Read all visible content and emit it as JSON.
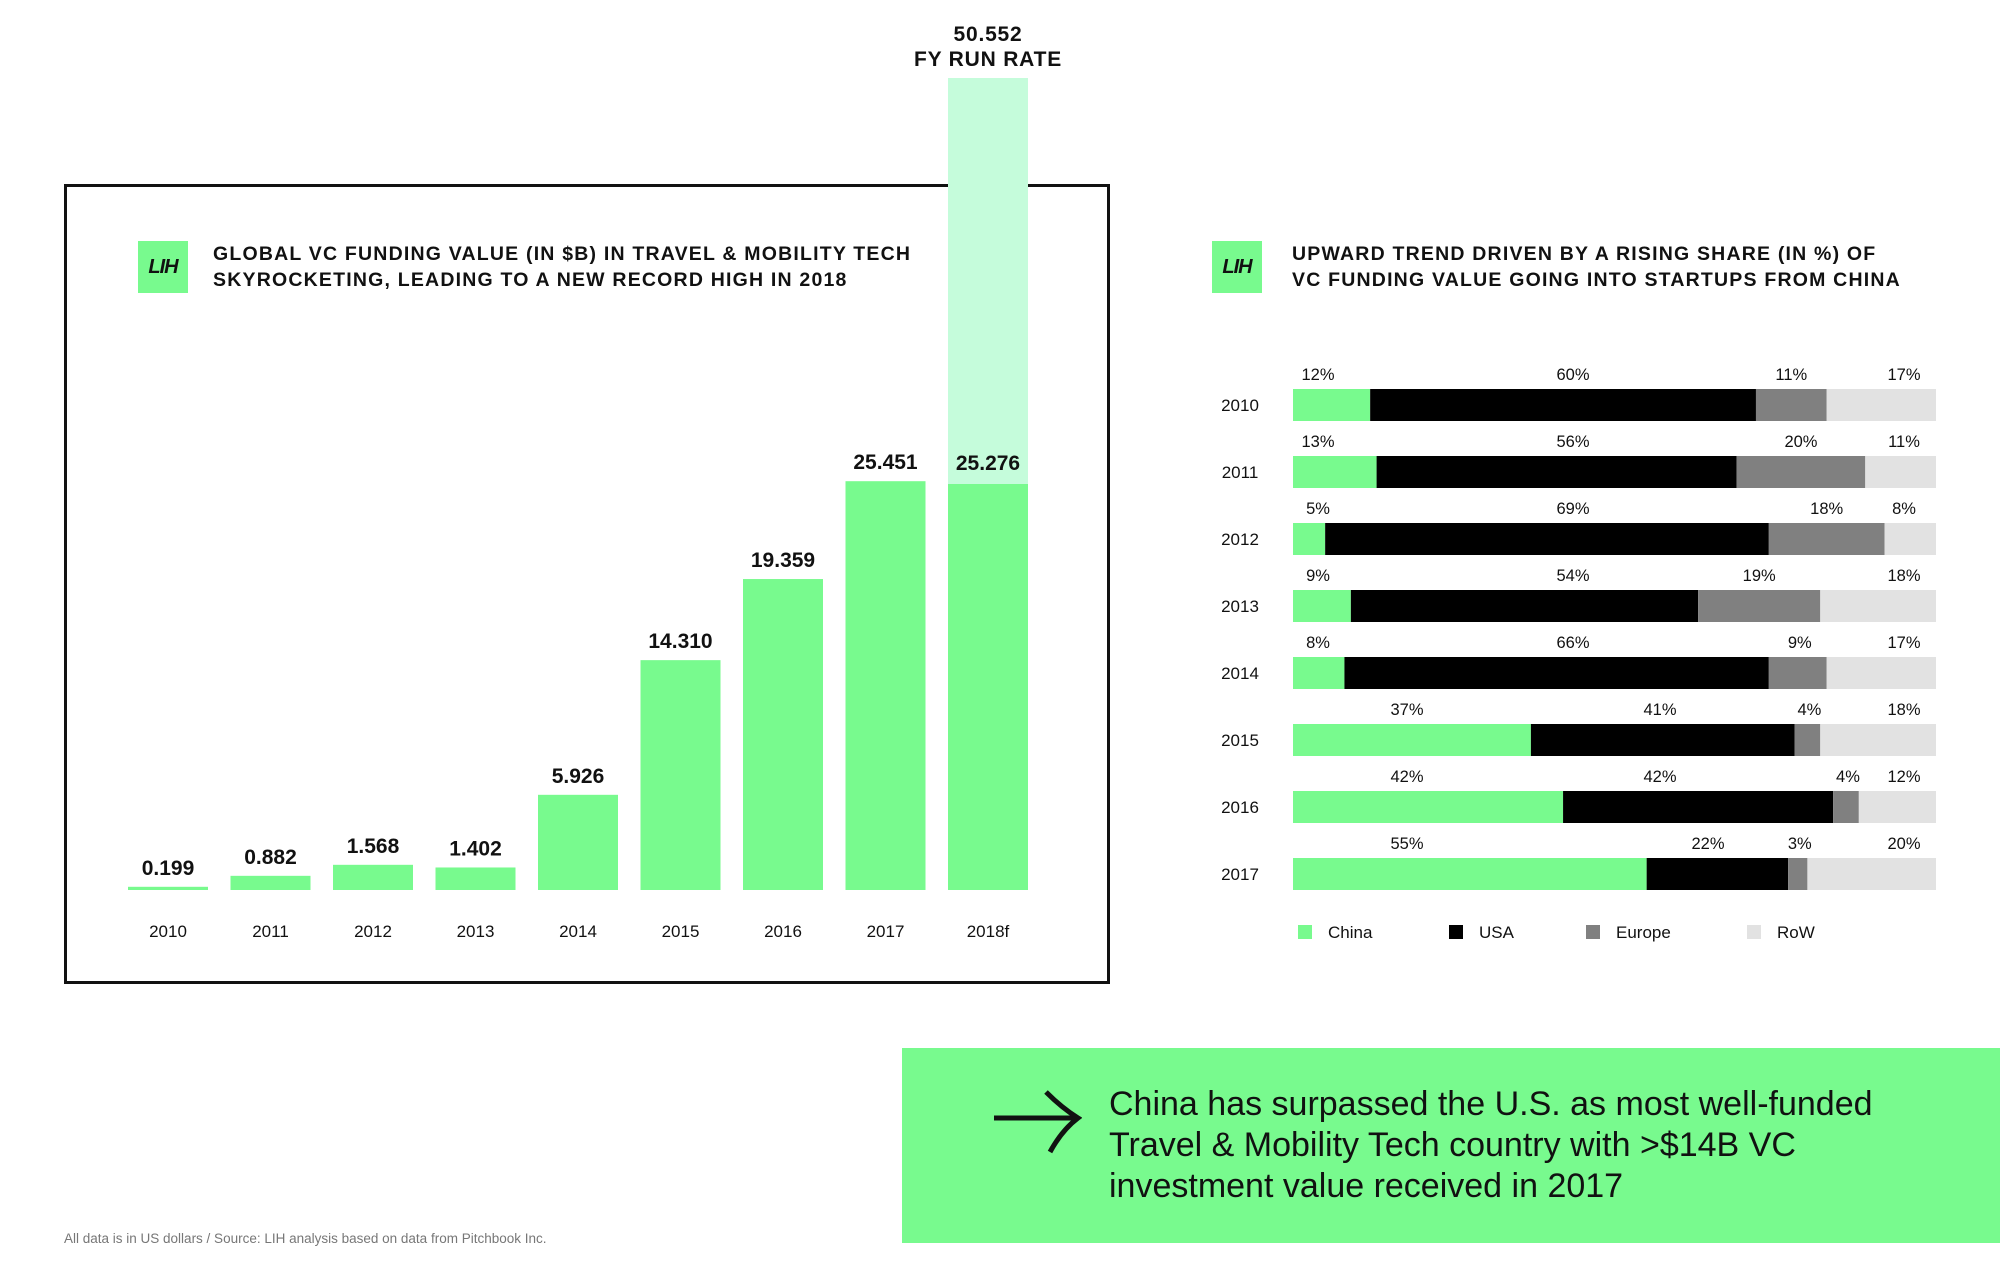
{
  "left_chart": {
    "title_lines": [
      "GLOBAL VC FUNDING VALUE (IN $B) IN TRAVEL & MOBILITY TECH",
      "SKYROCKETING, LEADING TO A NEW RECORD HIGH IN 2018"
    ],
    "logo_text": "LIH",
    "run_rate_label_lines": [
      "50.552",
      "FY RUN RATE"
    ]
  },
  "right_chart": {
    "title_lines": [
      "UPWARD TREND DRIVEN BY A RISING SHARE (IN %) OF",
      "VC FUNDING VALUE GOING INTO STARTUPS FROM CHINA"
    ],
    "logo_text": "LIH"
  },
  "callout": {
    "lines": [
      "China has surpassed the U.S. as most well-funded",
      "Travel & Mobility Tech country with >$14B VC",
      "investment value received in 2017"
    ]
  },
  "footnote": "All data is in US dollars / Source: LIH analysis based on data from Pitchbook Inc.",
  "colors": {
    "china": "#78fa8e",
    "usa": "#000000",
    "europe": "#808080",
    "row": "#e2e2e2",
    "run_rate": "#c5fcdb",
    "frame": "#111111"
  },
  "chart_data": [
    {
      "type": "bar",
      "categories": [
        "2010",
        "2011",
        "2012",
        "2013",
        "2014",
        "2015",
        "2016",
        "2017",
        "2018f"
      ],
      "values": [
        0.199,
        0.882,
        1.568,
        1.402,
        5.926,
        14.31,
        19.359,
        25.451,
        25.276
      ],
      "value_labels": [
        "0.199",
        "0.882",
        "1.568",
        "1.402",
        "5.926",
        "14.310",
        "19.359",
        "25.451",
        "25.276"
      ],
      "stacked_extension": {
        "category": "2018f",
        "total": 50.552
      },
      "ylim": [
        0,
        50.552
      ],
      "grid": false
    },
    {
      "type": "bar",
      "orientation": "horizontal",
      "stacked": true,
      "percent": true,
      "categories": [
        "2010",
        "2011",
        "2012",
        "2013",
        "2014",
        "2015",
        "2016",
        "2017"
      ],
      "series": [
        {
          "name": "China",
          "values": [
            12,
            13,
            5,
            9,
            8,
            37,
            42,
            55
          ]
        },
        {
          "name": "USA",
          "values": [
            60,
            56,
            69,
            54,
            66,
            41,
            42,
            22
          ]
        },
        {
          "name": "Europe",
          "values": [
            11,
            20,
            18,
            19,
            9,
            4,
            4,
            3
          ]
        },
        {
          "name": "RoW",
          "values": [
            17,
            11,
            8,
            18,
            17,
            18,
            12,
            20
          ]
        }
      ],
      "legend_position": "bottom",
      "grid": false
    }
  ]
}
